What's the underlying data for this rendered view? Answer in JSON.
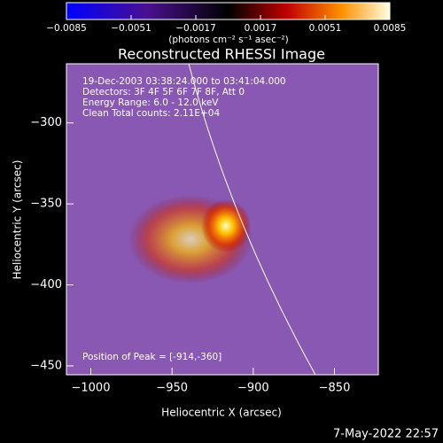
{
  "chart_data": {
    "type": "image",
    "title": "Reconstructed RHESSI Image",
    "colorbar_label": "(photons cm⁻² s⁻¹ asec⁻²)",
    "colorbar_lim": [
      -0.0085,
      0.0085
    ],
    "colorbar_ticks": [
      {
        "value": -0.0085,
        "label": "−0.0085"
      },
      {
        "value": -0.0051,
        "label": "−0.0051"
      },
      {
        "value": -0.0017,
        "label": "−0.0017"
      },
      0.0017,
      0.0051,
      0.0085
    ],
    "xlabel": "Heliocentric X (arcsec)",
    "ylabel": "Heliocentric Y (arcsec)",
    "xlim": [
      -1015,
      -823
    ],
    "ylim": [
      -455.5,
      -263.5
    ],
    "xticks": [
      {
        "value": -1000,
        "label": "−1000"
      },
      {
        "value": -950,
        "label": "−950"
      },
      {
        "value": -900,
        "label": "−900"
      },
      {
        "value": -850,
        "label": "−850"
      }
    ],
    "yticks": [
      {
        "value": -300,
        "label": "−300"
      },
      {
        "value": -350,
        "label": "−350"
      },
      {
        "value": -400,
        "label": "−400"
      },
      {
        "value": -450,
        "label": "−450"
      }
    ],
    "annotations": [
      "19-Dec-2003 03:38:24.000 to 03:41:04.000",
      "Detectors: 3F 4F 5F 6F 7F 8F, Att 0",
      "Energy Range: 6.0 - 12.0 keV",
      "Clean     Total counts: 2.11E+04"
    ],
    "peak_annotation": "Position of Peak = [-914,-360]",
    "timestamp": "7-May-2022 22:57"
  }
}
